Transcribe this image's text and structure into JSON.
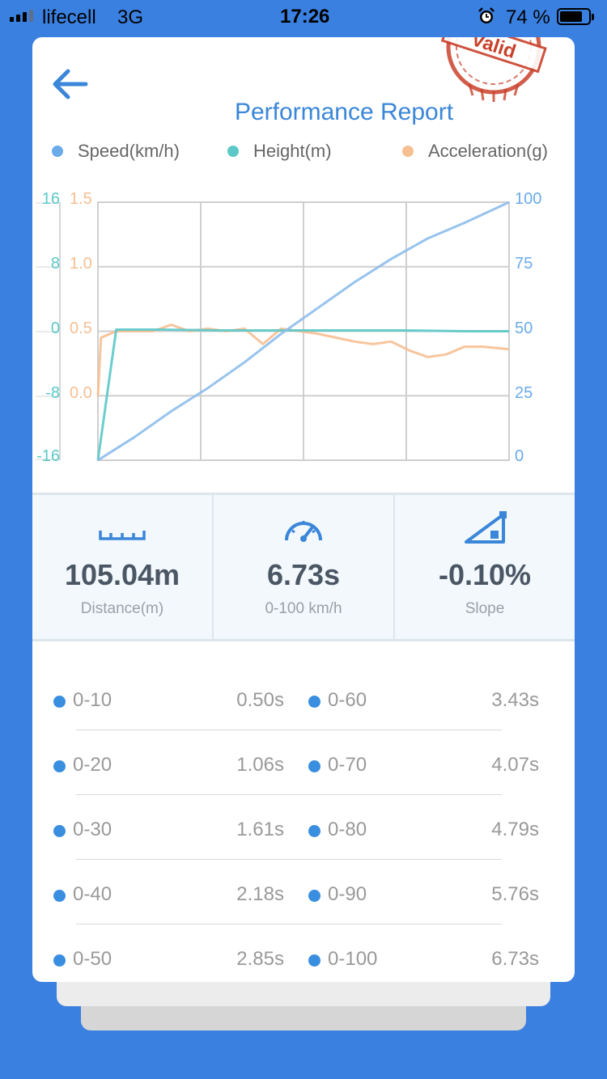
{
  "status_bar": {
    "carrier": "lifecell",
    "network": "3G",
    "time": "17:26",
    "battery": "74 %"
  },
  "header": {
    "title": "Performance Report",
    "stamp_text": "Valid"
  },
  "legend": [
    {
      "label": "Speed(km/h)",
      "color": "#6aabea"
    },
    {
      "label": "Height(m)",
      "color": "#5cc8c8"
    },
    {
      "label": "Acceleration(g)",
      "color": "#f6bf92"
    }
  ],
  "chart_data": {
    "type": "line",
    "series": [
      {
        "name": "Speed(km/h)",
        "axis": "right",
        "color": "#8cbdeb",
        "x": [
          0,
          0.6,
          1.2,
          1.8,
          2.4,
          3.0,
          3.6,
          4.2,
          4.8,
          5.4,
          6.0,
          6.73
        ],
        "y": [
          0,
          9,
          19,
          28,
          38,
          49,
          59,
          69,
          78,
          86,
          92,
          100
        ]
      },
      {
        "name": "Height(m)",
        "axis": "left-outer",
        "color": "#5cc8c8",
        "x": [
          0,
          0.3,
          1.0,
          2.0,
          3.0,
          4.0,
          5.0,
          6.0,
          6.73
        ],
        "y": [
          -16,
          0.2,
          0.2,
          0.1,
          0.1,
          0.1,
          0.1,
          0,
          0
        ]
      },
      {
        "name": "Acceleration(g)",
        "axis": "left-inner",
        "color": "#f6bf92",
        "x": [
          0,
          0.05,
          0.3,
          0.6,
          0.9,
          1.2,
          1.5,
          1.8,
          2.1,
          2.4,
          2.7,
          3.0,
          3.3,
          3.6,
          3.9,
          4.2,
          4.5,
          4.8,
          5.1,
          5.4,
          5.7,
          6.0,
          6.3,
          6.73
        ],
        "y": [
          0.0,
          0.45,
          0.5,
          0.5,
          0.5,
          0.55,
          0.5,
          0.52,
          0.5,
          0.52,
          0.4,
          0.52,
          0.5,
          0.48,
          0.45,
          0.42,
          0.4,
          0.42,
          0.35,
          0.3,
          0.32,
          0.38,
          0.38,
          0.36
        ]
      }
    ],
    "x_range": [
      0,
      6.73
    ],
    "y_left_outer": {
      "ticks": [
        "16",
        "8",
        "0",
        "-8",
        "-16"
      ],
      "range": [
        -16,
        16
      ]
    },
    "y_left_inner": {
      "ticks": [
        "1.5",
        "1.0",
        "0.5",
        "0.0"
      ],
      "range": [
        -0.5,
        1.5
      ]
    },
    "y_right": {
      "ticks": [
        "100",
        "75",
        "50",
        "25",
        "0"
      ],
      "range": [
        0,
        100
      ]
    },
    "grid": true
  },
  "stats": [
    {
      "value": "105.04m",
      "label": "Distance(m)",
      "icon": "ruler-icon"
    },
    {
      "value": "6.73s",
      "label": "0-100 km/h",
      "icon": "speedometer-icon"
    },
    {
      "value": "-0.10%",
      "label": "Slope",
      "icon": "slope-icon"
    }
  ],
  "times": [
    {
      "left": {
        "range": "0-10",
        "time": "0.50s"
      },
      "right": {
        "range": "0-60",
        "time": "3.43s"
      }
    },
    {
      "left": {
        "range": "0-20",
        "time": "1.06s"
      },
      "right": {
        "range": "0-70",
        "time": "4.07s"
      }
    },
    {
      "left": {
        "range": "0-30",
        "time": "1.61s"
      },
      "right": {
        "range": "0-80",
        "time": "4.79s"
      }
    },
    {
      "left": {
        "range": "0-40",
        "time": "2.18s"
      },
      "right": {
        "range": "0-90",
        "time": "5.76s"
      }
    },
    {
      "left": {
        "range": "0-50",
        "time": "2.85s"
      },
      "right": {
        "range": "0-100",
        "time": "6.73s"
      }
    }
  ]
}
